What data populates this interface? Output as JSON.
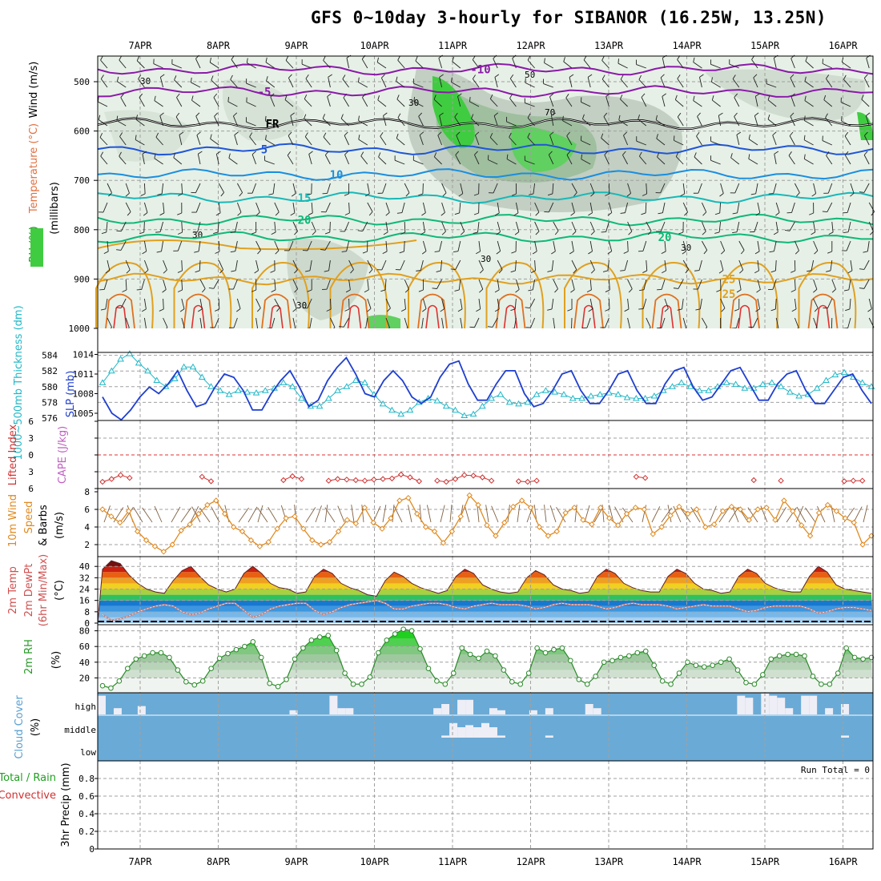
{
  "title": "GFS 0~10day 3-hourly for SIBANOR (16.25W, 13.25N)",
  "dates": [
    "7APR",
    "8APR",
    "9APR",
    "10APR",
    "11APR",
    "12APR",
    "13APR",
    "14APR",
    "15APR",
    "16APR"
  ],
  "colors": {
    "frame": "#000000",
    "grid": "#a0a0a0",
    "slp": "#1f3fd0",
    "thickness": "#20b8c8",
    "lifted_index": "#d03030",
    "wind_speed": "#e08a20",
    "rh_line": "#2a8a2a",
    "cloud_bg": "#6aaad6",
    "cloud_fill": "#eeeef6"
  },
  "chart_data": [
    {
      "type": "heatmap",
      "panel": "upper-air",
      "ylabel": [
        "Wind (m/s)",
        "Temperature (°C)",
        "RH (%)",
        "(millibars)"
      ],
      "yticks": [
        500,
        600,
        700,
        800,
        900,
        1000
      ],
      "ylim": [
        460,
        1000
      ],
      "temperature_contours": [
        {
          "label": "-10",
          "p": 475,
          "color": "#8a1aa8"
        },
        {
          "label": "-5",
          "p": 520,
          "color": "#8a1aa8"
        },
        {
          "label": "FR",
          "p": 585,
          "color": "#000000"
        },
        {
          "label": "5",
          "p": 637,
          "color": "#1f55d8"
        },
        {
          "label": "10",
          "p": 688,
          "color": "#1a8ee0"
        },
        {
          "label": "15",
          "p": 735,
          "color": "#18b8b8"
        },
        {
          "label": "20",
          "p": 780,
          "color": "#10b878"
        },
        {
          "label": "20",
          "p": 815,
          "color": "#10b878"
        },
        {
          "label": "25",
          "p": 900,
          "color": "#e0a020"
        }
      ],
      "rh_labels": [
        "30",
        "50",
        "70"
      ]
    },
    {
      "type": "line",
      "panel": "slp-thickness",
      "ylabel_left": "1000~500mb Thickness (dm)",
      "ylabel_right": "SLP (mb)",
      "y_thickness_ticks": [
        576,
        578,
        580,
        582,
        584
      ],
      "y_slp_ticks": [
        1005,
        1008,
        1011,
        1014
      ],
      "series": [
        {
          "name": "SLP (mb)",
          "values": [
            1007.5,
            1005.0,
            1004.0,
            1005.5,
            1007.5,
            1009.0,
            1008.0,
            1009.5,
            1011.5,
            1008.5,
            1006.0,
            1006.5,
            1009.0,
            1011.0,
            1010.5,
            1008.5,
            1005.5,
            1005.5,
            1008.0,
            1010.0,
            1011.5,
            1009.0,
            1006.0,
            1007.0,
            1010.0,
            1012.0,
            1013.5,
            1011.0,
            1008.0,
            1007.5,
            1010.0,
            1011.5,
            1010.0,
            1007.5,
            1006.5,
            1007.5,
            1010.5,
            1012.5,
            1013.0,
            1009.5,
            1007.0,
            1007.0,
            1009.5,
            1011.5,
            1011.5,
            1008.0,
            1006.0,
            1006.5,
            1008.5,
            1011.0,
            1011.5,
            1008.5,
            1006.5,
            1006.5,
            1008.5,
            1011.0,
            1011.5,
            1008.5,
            1006.5,
            1006.5,
            1009.5,
            1011.5,
            1012.0,
            1009.0,
            1007.0,
            1007.5,
            1009.5,
            1011.5,
            1012.0,
            1009.5,
            1007.0,
            1007.0,
            1009.5,
            1011.0,
            1011.5,
            1008.5,
            1006.5,
            1006.5,
            1008.5,
            1010.5,
            1011.0,
            1008.5,
            1006.5
          ]
        },
        {
          "name": "Thickness (dm)",
          "values": [
            580.5,
            582.0,
            583.5,
            584.2,
            583.0,
            582.0,
            580.8,
            580.0,
            581.0,
            582.5,
            582.5,
            581.2,
            580.0,
            579.5,
            579.0,
            579.5,
            579.3,
            579.2,
            579.5,
            579.8,
            580.5,
            580.0,
            578.5,
            577.5,
            577.5,
            578.5,
            579.5,
            580.0,
            580.8,
            580.5,
            579.0,
            577.8,
            577.0,
            576.5,
            577.0,
            578.0,
            578.5,
            578.2,
            577.5,
            577.0,
            576.3,
            576.5,
            577.5,
            578.5,
            579.0,
            578.0,
            577.8,
            578.0,
            579.0,
            579.5,
            579.3,
            579.0,
            578.5,
            578.5,
            578.8,
            579.0,
            579.2,
            579.0,
            578.6,
            578.5,
            578.5,
            578.8,
            579.5,
            580.0,
            580.5,
            580.0,
            579.5,
            579.5,
            580.0,
            580.5,
            580.3,
            579.8,
            579.8,
            580.3,
            580.5,
            580.0,
            579.3,
            578.8,
            579.0,
            579.8,
            580.8,
            581.5,
            581.8,
            581.2,
            580.5,
            580.0
          ]
        }
      ]
    },
    {
      "type": "scatter",
      "panel": "stability",
      "ylabel_left": "Lifted Index",
      "ylabel_right": "CAPE (J/kg)",
      "yticks": [
        "6",
        "3",
        "0",
        "3",
        "6"
      ],
      "ylim": [
        -6,
        6
      ],
      "series": [
        {
          "name": "Lifted Index",
          "values": [
            4.8,
            4.3,
            3.6,
            4.1,
            null,
            null,
            null,
            null,
            null,
            null,
            null,
            3.9,
            4.7,
            null,
            null,
            null,
            null,
            null,
            null,
            null,
            4.5,
            3.8,
            4.3,
            null,
            null,
            4.6,
            4.3,
            4.4,
            4.5,
            4.6,
            4.4,
            4.3,
            4.2,
            3.5,
            4.0,
            4.7,
            null,
            4.6,
            4.8,
            4.3,
            3.6,
            3.7,
            4.0,
            4.6,
            null,
            null,
            4.7,
            4.8,
            4.6,
            null,
            null,
            null,
            null,
            null,
            null,
            null,
            null,
            null,
            null,
            3.9,
            4.1,
            null,
            null,
            null,
            null,
            null,
            null,
            null,
            null,
            null,
            null,
            null,
            4.5,
            null,
            null,
            4.6,
            null,
            null,
            null,
            null,
            null,
            null,
            4.7,
            4.6,
            4.6,
            null
          ]
        }
      ]
    },
    {
      "type": "line",
      "panel": "10m-wind",
      "ylabel": [
        "10m Wind",
        "Speed",
        "& Barbs",
        "(m/s)"
      ],
      "yticks": [
        2,
        4,
        6,
        8
      ],
      "series": [
        {
          "name": "Speed",
          "values": [
            6.0,
            5.2,
            4.5,
            5.8,
            3.5,
            2.5,
            1.8,
            1.2,
            2.0,
            3.6,
            4.3,
            5.5,
            6.5,
            7.0,
            5.5,
            4.0,
            3.5,
            2.5,
            1.8,
            2.3,
            3.8,
            5.0,
            5.2,
            3.8,
            2.5,
            2.0,
            2.3,
            3.5,
            4.8,
            4.4,
            6.2,
            4.5,
            3.8,
            5.0,
            7.0,
            7.3,
            5.5,
            4.0,
            3.5,
            2.2,
            3.5,
            5.2,
            7.6,
            6.5,
            4.2,
            3.0,
            4.5,
            6.3,
            7.0,
            6.2,
            4.0,
            3.0,
            3.5,
            5.6,
            6.2,
            4.8,
            4.3,
            6.2,
            5.0,
            4.2,
            5.5,
            6.2,
            6.0,
            3.2,
            4.0,
            5.3,
            6.3,
            5.5,
            6.0,
            4.0,
            4.3,
            5.8,
            6.3,
            6.0,
            4.8,
            6.0,
            6.2,
            4.8,
            7.0,
            5.8,
            4.2,
            3.0,
            5.6,
            6.5,
            5.8,
            5.0,
            4.5,
            2.0,
            3.0
          ]
        }
      ]
    },
    {
      "type": "area",
      "panel": "2m-temp",
      "ylabel": [
        "2m Temp",
        "2m DewPt",
        "(6hr Min/Max)",
        "(°C)"
      ],
      "yticks": [
        0,
        8,
        16,
        24,
        32,
        40
      ],
      "series": [
        {
          "name": "2m Temp",
          "values": [
            38,
            44,
            42,
            34,
            28,
            24,
            22,
            21,
            30,
            37,
            40,
            33,
            27,
            24,
            22,
            24,
            35,
            40,
            35,
            28,
            25,
            24,
            21,
            22,
            33,
            38,
            35,
            28,
            25,
            23,
            20,
            19,
            30,
            36,
            33,
            28,
            25,
            23,
            21,
            23,
            33,
            38,
            35,
            27,
            24,
            22,
            21,
            22,
            32,
            37,
            34,
            27,
            24,
            23,
            21,
            22,
            33,
            38,
            35,
            28,
            25,
            23,
            22,
            22,
            33,
            38,
            35,
            28,
            24,
            23,
            21,
            22,
            33,
            38,
            35,
            28,
            25,
            23,
            22,
            22,
            33,
            40,
            36,
            27,
            24,
            23,
            22,
            21
          ]
        },
        {
          "name": "2m DewPt",
          "values": [
            6,
            2,
            3,
            5,
            8,
            10,
            12,
            13,
            12,
            8,
            6,
            7,
            10,
            12,
            14,
            14,
            9,
            4,
            6,
            10,
            12,
            13,
            14,
            14,
            9,
            6,
            8,
            11,
            13,
            14,
            15,
            16,
            14,
            10,
            10,
            12,
            13,
            14,
            14,
            13,
            11,
            10,
            12,
            13,
            14,
            13,
            13,
            13,
            12,
            10,
            11,
            13,
            14,
            13,
            13,
            13,
            12,
            10,
            11,
            13,
            14,
            13,
            13,
            13,
            12,
            10,
            11,
            12,
            13,
            12,
            12,
            12,
            10,
            8,
            9,
            11,
            12,
            12,
            12,
            12,
            10,
            7,
            8,
            10,
            11,
            11,
            10,
            9
          ]
        }
      ]
    },
    {
      "type": "area",
      "panel": "2m-rh",
      "ylabel": [
        "2m RH",
        "(%)"
      ],
      "yticks": [
        20,
        40,
        60,
        80
      ],
      "series": [
        {
          "name": "2m RH",
          "values": [
            10,
            7,
            16,
            32,
            44,
            48,
            52,
            52,
            46,
            30,
            15,
            11,
            16,
            32,
            45,
            51,
            56,
            60,
            66,
            46,
            13,
            9,
            18,
            44,
            58,
            68,
            72,
            74,
            55,
            26,
            12,
            12,
            21,
            52,
            68,
            76,
            82,
            80,
            57,
            32,
            16,
            12,
            26,
            58,
            50,
            45,
            54,
            48,
            30,
            15,
            12,
            26,
            58,
            52,
            56,
            58,
            42,
            18,
            12,
            22,
            40,
            42,
            46,
            48,
            52,
            54,
            36,
            16,
            12,
            26,
            40,
            36,
            34,
            36,
            40,
            44,
            30,
            14,
            12,
            24,
            44,
            48,
            50,
            50,
            48,
            22,
            12,
            12,
            26,
            58,
            46,
            44,
            46
          ]
        }
      ]
    },
    {
      "type": "bar",
      "panel": "cloud-cover",
      "ylabel": [
        "Cloud Cover",
        "(%)"
      ],
      "levels": [
        "high",
        "middle",
        "low"
      ],
      "series": [
        {
          "name": "high",
          "values": [
            90,
            0,
            30,
            0,
            0,
            40,
            0,
            0,
            0,
            0,
            0,
            0,
            0,
            0,
            0,
            0,
            0,
            0,
            0,
            0,
            0,
            0,
            0,
            0,
            20,
            0,
            0,
            0,
            0,
            90,
            30,
            30,
            0,
            0,
            0,
            0,
            0,
            0,
            0,
            0,
            0,
            0,
            30,
            50,
            0,
            70,
            70,
            0,
            0,
            30,
            20,
            0,
            0,
            0,
            20,
            0,
            30,
            0,
            0,
            0,
            0,
            50,
            30,
            0,
            0,
            0,
            0,
            0,
            0,
            0,
            0,
            0,
            0,
            0,
            0,
            0,
            0,
            0,
            0,
            0,
            90,
            80,
            0,
            100,
            90,
            80,
            30,
            0,
            90,
            90,
            0,
            30,
            0,
            50,
            0,
            0,
            0
          ]
        },
        {
          "name": "middle",
          "values": [
            0,
            0,
            0,
            0,
            0,
            0,
            0,
            0,
            0,
            0,
            0,
            0,
            0,
            0,
            0,
            0,
            0,
            0,
            0,
            0,
            0,
            0,
            0,
            0,
            0,
            0,
            0,
            0,
            0,
            0,
            0,
            0,
            0,
            0,
            0,
            0,
            0,
            0,
            0,
            0,
            0,
            0,
            0,
            10,
            70,
            50,
            60,
            50,
            70,
            50,
            10,
            0,
            0,
            0,
            0,
            0,
            10,
            0,
            0,
            0,
            0,
            0,
            0,
            0,
            0,
            0,
            0,
            0,
            0,
            0,
            0,
            0,
            0,
            0,
            0,
            0,
            0,
            0,
            0,
            0,
            0,
            0,
            0,
            0,
            0,
            0,
            0,
            0,
            0,
            0,
            0,
            0,
            0,
            10,
            0,
            0,
            0
          ]
        },
        {
          "name": "low",
          "values": []
        }
      ]
    },
    {
      "type": "bar",
      "panel": "precip",
      "ylabel": [
        "3hr Precip (mm)"
      ],
      "ylabel_right": [
        "Total / Rain",
        "Convective"
      ],
      "yticks": [
        "0",
        "0.2",
        "0.4",
        "0.6",
        "0.8"
      ],
      "ylim": [
        0,
        1
      ],
      "annotation": "Run Total = 0",
      "values": []
    }
  ]
}
